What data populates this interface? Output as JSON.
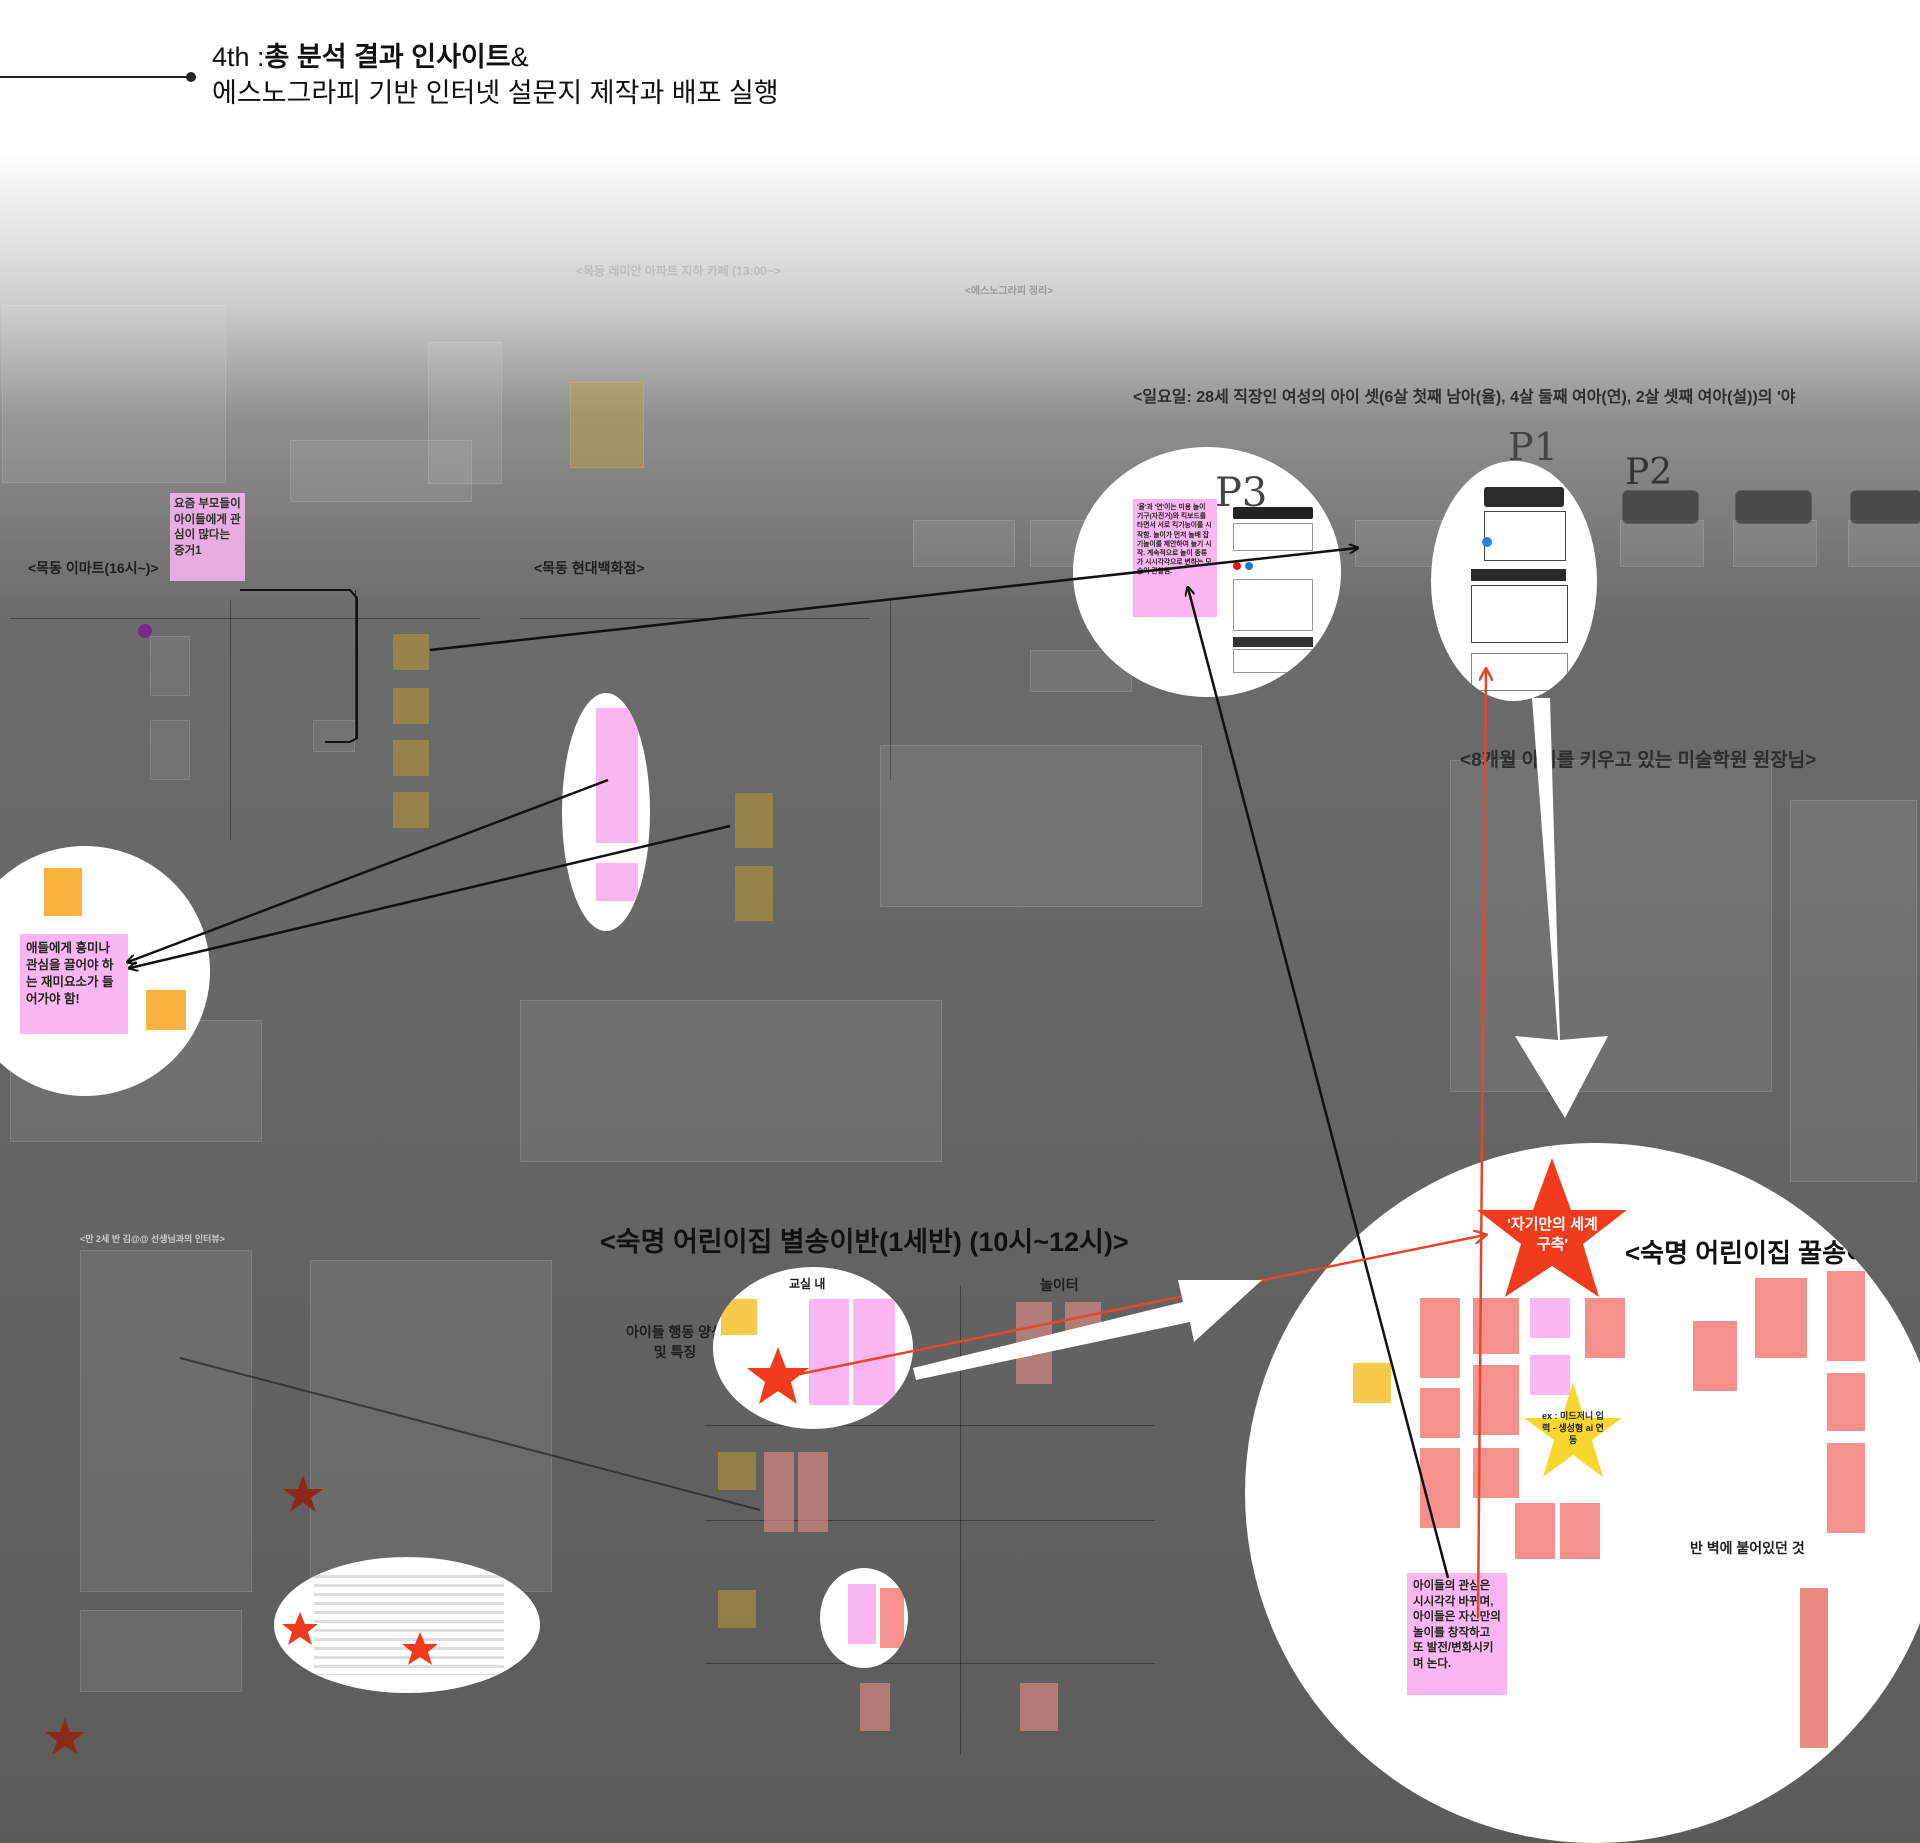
{
  "header": {
    "prefix": "4th :",
    "title_bold": "총 분석 결과 인사이트",
    "title_amp": "&",
    "subtitle": "에스노그라피 기반 인터넷 설문지 제작과 배포 실행"
  },
  "sections": {
    "sunday": "<일요일: 28세 직장인 여성의 아이 셋(6살 첫째 남아(율), 4살 둘째 여아(연), 2살 셋째 여아(설))의 '야",
    "mokdong_emart": "<목동 이마트(16시~)>",
    "mokdong_hyundai": "<목동 현대백화점>",
    "art_academy": "<8개월 아이를 키우고 있는 미술학원 원장님>",
    "sookmyung_byeol": "<숙명 어린이집 별송이반(1세반) (10시~12시)>",
    "sookmyung_kkul": "<숙명 어린이집 꿀송이반",
    "faded_emart_cafe": "<목동 레미안 아파트 지하 카페 (13:00~>",
    "faded_ethno": "<에스노그라피 정리>",
    "faded_interview": "<만 2세 반 김@@ 선생님과의 인터뷰>",
    "classroom_in": "교실 내",
    "playground": "놀이터",
    "child_behavior": "아이들 행동 양상\n및 특징",
    "wall_posted": "반 벽에 붙어있던 것"
  },
  "notes": {
    "parents_little_interest": "요즘 부모들이 아이들에게 관심이 많다는 증거1",
    "fun_element": "애들에게 흥미나 관심을 끌어야 하는 재미요소가 들어가야 함!",
    "play_change": "'율'과 '연'이는 미용 놀이 기구(자전거)와 킥보드를 타면서 서로 킥기능이를 시작함. 놀이가 먼저 놀배 잡기놀이를 제안하여 놀기 시작. 계속적으로 놀이 종류가 시시각각으로 변하는 모습이 관찰됨.",
    "kids_interest_change": "아이들의 관심은 시시각각 바뀌며, 아이들은 자신만의 놀이를 창작하고 또 발전/변화시키며 논다.",
    "own_world_star": "'자기만의 세계 구축'",
    "midjourney_star": "ex : 미드저니 입력 - 생성형 ai 연동"
  },
  "handwriting": {
    "p1": "P1",
    "p2": "P2",
    "p3": "P3"
  },
  "colors": {
    "pink_note": "#f9b6f0",
    "yellow_note": "#f5c94a",
    "salmon_note": "#f4918c",
    "red_star": "#f03c1c",
    "yellow_star": "#f7d62e",
    "arrow_red": "#e8452a"
  }
}
